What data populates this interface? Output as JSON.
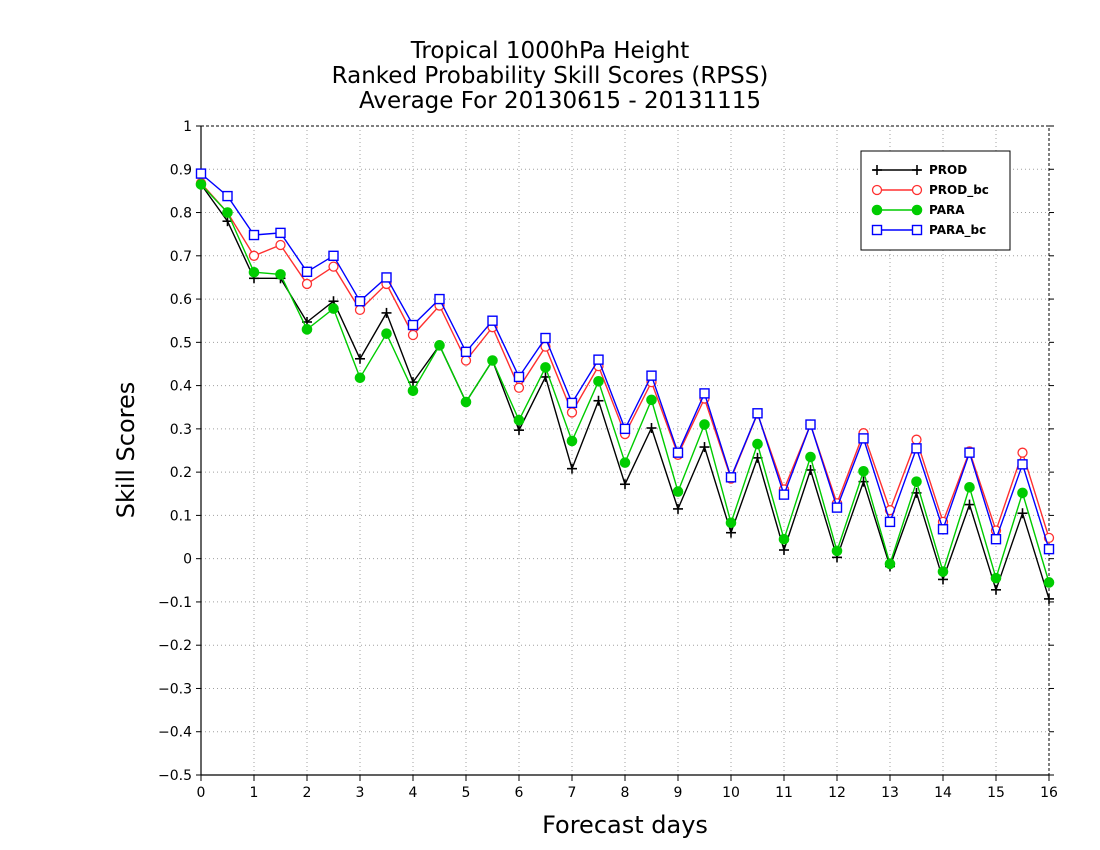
{
  "chart_data": {
    "type": "line",
    "title": [
      "Tropical 1000hPa Height",
      "Ranked Probability Skill Scores (RPSS)",
      "Average For 20130615 - 20131115"
    ],
    "xlabel": "Forecast days",
    "ylabel": "Skill Scores",
    "xlim": [
      0,
      16
    ],
    "ylim": [
      -0.5,
      1
    ],
    "xticks": [
      "0",
      "1",
      "2",
      "3",
      "4",
      "5",
      "6",
      "7",
      "8",
      "9",
      "10",
      "11",
      "12",
      "13",
      "14",
      "15",
      "16"
    ],
    "yticks": [
      "1",
      "0.9",
      "0.8",
      "0.7",
      "0.6",
      "0.5",
      "0.4",
      "0.3",
      "0.2",
      "0.1",
      "0",
      "−0.1",
      "−0.2",
      "−0.3",
      "−0.4",
      "−0.5"
    ],
    "grid": true,
    "legend_position": "top-right",
    "x": [
      0,
      0.5,
      1,
      1.5,
      2,
      2.5,
      3,
      3.5,
      4,
      4.5,
      5,
      5.5,
      6,
      6.5,
      7,
      7.5,
      8,
      8.5,
      9,
      9.5,
      10,
      10.5,
      11,
      11.5,
      12,
      12.5,
      13,
      13.5,
      14,
      14.5,
      15,
      15.5,
      16
    ],
    "series": [
      {
        "name": "PROD",
        "color": "#000000",
        "marker": "plus",
        "values": [
          0.865,
          0.78,
          0.648,
          0.648,
          0.547,
          0.595,
          0.462,
          0.568,
          0.408,
          0.493,
          0.362,
          0.458,
          0.297,
          0.42,
          0.208,
          0.365,
          0.172,
          0.302,
          0.115,
          0.258,
          0.06,
          0.233,
          0.02,
          0.205,
          0.003,
          0.178,
          -0.018,
          0.152,
          -0.048,
          0.125,
          -0.072,
          0.105,
          -0.093
        ]
      },
      {
        "name": "PROD_bc",
        "color": "#ff3030",
        "marker": "circle-open",
        "values": [
          0.868,
          0.8,
          0.7,
          0.725,
          0.635,
          0.675,
          0.575,
          0.635,
          0.517,
          0.585,
          0.458,
          0.535,
          0.395,
          0.49,
          0.338,
          0.445,
          0.288,
          0.408,
          0.24,
          0.37,
          0.185,
          0.335,
          0.16,
          0.31,
          0.128,
          0.29,
          0.112,
          0.275,
          0.085,
          0.248,
          0.065,
          0.245,
          0.048
        ]
      },
      {
        "name": "PARA",
        "color": "#00cc00",
        "marker": "circle-filled",
        "values": [
          0.865,
          0.8,
          0.662,
          0.657,
          0.53,
          0.578,
          0.418,
          0.52,
          0.388,
          0.493,
          0.362,
          0.458,
          0.32,
          0.442,
          0.272,
          0.41,
          0.222,
          0.367,
          0.155,
          0.31,
          0.083,
          0.265,
          0.045,
          0.235,
          0.018,
          0.202,
          -0.012,
          0.178,
          -0.03,
          0.165,
          -0.045,
          0.152,
          -0.055
        ]
      },
      {
        "name": "PARA_bc",
        "color": "#0000ff",
        "marker": "square-open",
        "values": [
          0.89,
          0.838,
          0.748,
          0.753,
          0.663,
          0.7,
          0.595,
          0.65,
          0.54,
          0.6,
          0.478,
          0.55,
          0.42,
          0.51,
          0.36,
          0.46,
          0.3,
          0.423,
          0.245,
          0.382,
          0.188,
          0.336,
          0.148,
          0.31,
          0.118,
          0.278,
          0.085,
          0.255,
          0.068,
          0.245,
          0.045,
          0.218,
          0.022
        ]
      }
    ]
  }
}
